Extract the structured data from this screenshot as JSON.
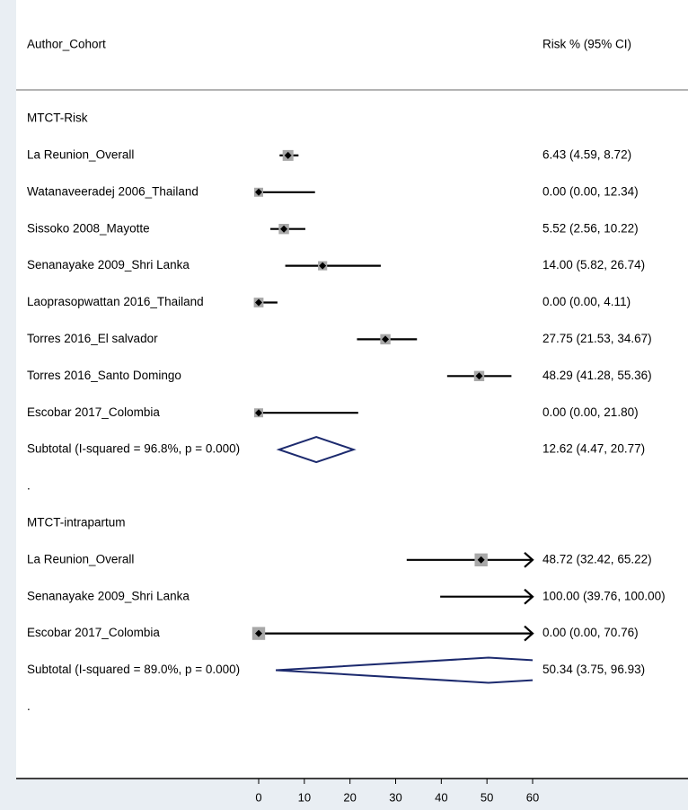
{
  "chart_data": {
    "type": "forest",
    "header": {
      "left": "Author_Cohort",
      "right": "Risk % (95% CI)"
    },
    "x_axis": {
      "ticks": [
        0,
        10,
        20,
        30,
        40,
        50,
        60
      ],
      "range": [
        0,
        60
      ]
    },
    "marker_color": "#000000",
    "box_color": "#a8a8a8",
    "diamond_color": "#1c2a6e",
    "groups": [
      {
        "name": "MTCT-Risk",
        "studies": [
          {
            "label": "La Reunion_Overall",
            "estimate": 6.43,
            "lo": 4.59,
            "hi": 8.72,
            "weight": 1.0,
            "ci_text": "6.43 (4.59, 8.72)"
          },
          {
            "label": "Watanaveeradej 2006_Thailand",
            "estimate": 0.0,
            "lo": 0.0,
            "hi": 12.34,
            "weight": 0.8,
            "ci_text": "0.00 (0.00, 12.34)"
          },
          {
            "label": "Sissoko 2008_Mayotte",
            "estimate": 5.52,
            "lo": 2.56,
            "hi": 10.22,
            "weight": 0.95,
            "ci_text": "5.52 (2.56, 10.22)"
          },
          {
            "label": "Senanayake 2009_Shri Lanka",
            "estimate": 14.0,
            "lo": 5.82,
            "hi": 26.74,
            "weight": 0.85,
            "ci_text": "14.00 (5.82, 26.74)"
          },
          {
            "label": "Laoprasopwattan 2016_Thailand",
            "estimate": 0.0,
            "lo": 0.0,
            "hi": 4.11,
            "weight": 0.9,
            "ci_text": "0.00 (0.00, 4.11)"
          },
          {
            "label": "Torres 2016_El salvador",
            "estimate": 27.75,
            "lo": 21.53,
            "hi": 34.67,
            "weight": 0.95,
            "ci_text": "27.75 (21.53, 34.67)"
          },
          {
            "label": "Torres 2016_Santo Domingo",
            "estimate": 48.29,
            "lo": 41.28,
            "hi": 55.36,
            "weight": 0.95,
            "ci_text": "48.29 (41.28, 55.36)"
          },
          {
            "label": "Escobar 2017_Colombia",
            "estimate": 0.0,
            "lo": 0.0,
            "hi": 21.8,
            "weight": 0.75,
            "ci_text": "0.00 (0.00, 21.80)"
          }
        ],
        "subtotal": {
          "label": "Subtotal  (I-squared = 96.8%, p = 0.000)",
          "estimate": 12.62,
          "lo": 4.47,
          "hi": 20.77,
          "ci_text": "12.62 (4.47, 20.77)"
        }
      },
      {
        "name": "MTCT-intrapartum",
        "studies": [
          {
            "label": "La Reunion_Overall",
            "estimate": 48.72,
            "lo": 32.42,
            "hi": 65.22,
            "weight": 1.2,
            "ci_text": "48.72 (32.42, 65.22)"
          },
          {
            "label": "Senanayake 2009_Shri Lanka",
            "estimate": 100.0,
            "lo": 39.76,
            "hi": 100.0,
            "weight": 0.0,
            "ci_text": "100.00 (39.76, 100.00)"
          },
          {
            "label": "Escobar 2017_Colombia",
            "estimate": 0.0,
            "lo": 0.0,
            "hi": 70.76,
            "weight": 1.2,
            "ci_text": "0.00 (0.00, 70.76)"
          }
        ],
        "subtotal": {
          "label": "Subtotal  (I-squared = 89.0%, p = 0.000)",
          "estimate": 50.34,
          "lo": 3.75,
          "hi": 96.93,
          "ci_text": "50.34 (3.75, 96.93)"
        }
      }
    ],
    "separator_text": "."
  }
}
